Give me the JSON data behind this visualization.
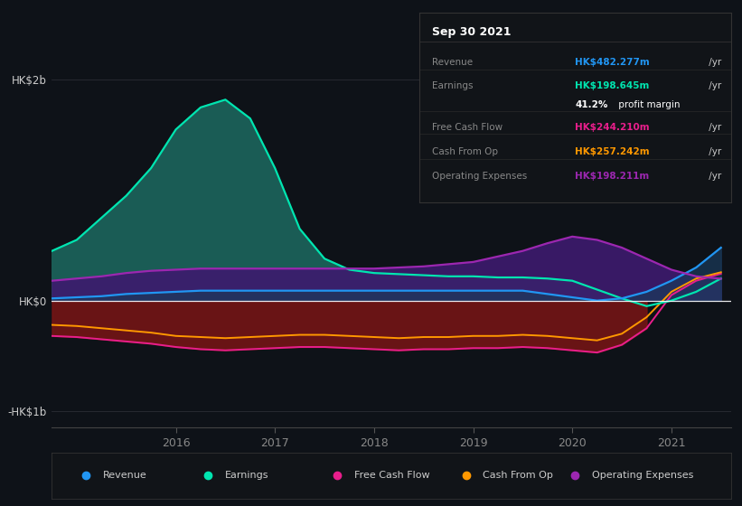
{
  "bg_color": "#0e1218",
  "plot_bg_color": "#0e1218",
  "years": [
    2014.75,
    2015.0,
    2015.25,
    2015.5,
    2015.75,
    2016.0,
    2016.25,
    2016.5,
    2016.75,
    2017.0,
    2017.25,
    2017.5,
    2017.75,
    2018.0,
    2018.25,
    2018.5,
    2018.75,
    2019.0,
    2019.25,
    2019.5,
    2019.75,
    2020.0,
    2020.25,
    2020.5,
    2020.75,
    2021.0,
    2021.25,
    2021.5
  ],
  "revenue": [
    0.02,
    0.03,
    0.04,
    0.06,
    0.07,
    0.08,
    0.09,
    0.09,
    0.09,
    0.09,
    0.09,
    0.09,
    0.09,
    0.09,
    0.09,
    0.09,
    0.09,
    0.09,
    0.09,
    0.09,
    0.06,
    0.03,
    0.0,
    0.02,
    0.08,
    0.18,
    0.3,
    0.48
  ],
  "earnings": [
    0.45,
    0.55,
    0.75,
    0.95,
    1.2,
    1.55,
    1.75,
    1.82,
    1.65,
    1.2,
    0.65,
    0.38,
    0.28,
    0.25,
    0.24,
    0.23,
    0.22,
    0.22,
    0.21,
    0.21,
    0.2,
    0.18,
    0.1,
    0.02,
    -0.05,
    0.0,
    0.08,
    0.2
  ],
  "free_cash_flow": [
    -0.32,
    -0.33,
    -0.35,
    -0.37,
    -0.39,
    -0.42,
    -0.44,
    -0.45,
    -0.44,
    -0.43,
    -0.42,
    -0.42,
    -0.43,
    -0.44,
    -0.45,
    -0.44,
    -0.44,
    -0.43,
    -0.43,
    -0.42,
    -0.43,
    -0.45,
    -0.47,
    -0.4,
    -0.25,
    0.05,
    0.18,
    0.244
  ],
  "cash_from_op": [
    -0.22,
    -0.23,
    -0.25,
    -0.27,
    -0.29,
    -0.32,
    -0.33,
    -0.34,
    -0.33,
    -0.32,
    -0.31,
    -0.31,
    -0.32,
    -0.33,
    -0.34,
    -0.33,
    -0.33,
    -0.32,
    -0.32,
    -0.31,
    -0.32,
    -0.34,
    -0.36,
    -0.3,
    -0.15,
    0.08,
    0.2,
    0.257
  ],
  "operating_exp": [
    0.18,
    0.2,
    0.22,
    0.25,
    0.27,
    0.28,
    0.29,
    0.29,
    0.29,
    0.29,
    0.29,
    0.29,
    0.29,
    0.29,
    0.3,
    0.31,
    0.33,
    0.35,
    0.4,
    0.45,
    0.52,
    0.58,
    0.55,
    0.48,
    0.38,
    0.28,
    0.22,
    0.198
  ],
  "ylim": [
    -1.15,
    2.15
  ],
  "xlim_start": 2014.75,
  "xlim_end": 2021.6,
  "ytick_vals": [
    -1.0,
    0.0,
    2.0
  ],
  "ytick_labels": [
    "-HK$1b",
    "HK$0",
    "HK$2b"
  ],
  "xtick_vals": [
    2016,
    2017,
    2018,
    2019,
    2020,
    2021
  ],
  "xtick_labels": [
    "2016",
    "2017",
    "2018",
    "2019",
    "2020",
    "2021"
  ],
  "revenue_color": "#2196f3",
  "earnings_color": "#00e5b0",
  "earnings_fill_pos_color": "#1a5c55",
  "earnings_fill_neg_color": "#7a1515",
  "fcf_fill_neg_color": "#7a1515",
  "fcf_color": "#e91e8c",
  "cfo_color": "#ff9800",
  "opex_color": "#9c27b0",
  "opex_fill_color": "#3d1a6e",
  "revenue_fill_color": "#1a3a5c",
  "info_box": {
    "title": "Sep 30 2021",
    "title_color": "#ffffff",
    "label_color": "#888888",
    "bg_color": "#111418",
    "border_color": "#333333",
    "rows": [
      {
        "label": "Revenue",
        "value": "HK$482.277m",
        "suffix": " /yr",
        "value_color": "#2196f3"
      },
      {
        "label": "Earnings",
        "value": "HK$198.645m",
        "suffix": " /yr",
        "value_color": "#00e5b0"
      },
      {
        "label": "",
        "value": "41.2%",
        "suffix": " profit margin",
        "value_color": "#ffffff"
      },
      {
        "label": "Free Cash Flow",
        "value": "HK$244.210m",
        "suffix": " /yr",
        "value_color": "#e91e8c"
      },
      {
        "label": "Cash From Op",
        "value": "HK$257.242m",
        "suffix": " /yr",
        "value_color": "#ff9800"
      },
      {
        "label": "Operating Expenses",
        "value": "HK$198.211m",
        "suffix": " /yr",
        "value_color": "#9c27b0"
      }
    ]
  },
  "legend_items": [
    {
      "label": "Revenue",
      "color": "#2196f3"
    },
    {
      "label": "Earnings",
      "color": "#00e5b0"
    },
    {
      "label": "Free Cash Flow",
      "color": "#e91e8c"
    },
    {
      "label": "Cash From Op",
      "color": "#ff9800"
    },
    {
      "label": "Operating Expenses",
      "color": "#9c27b0"
    }
  ]
}
